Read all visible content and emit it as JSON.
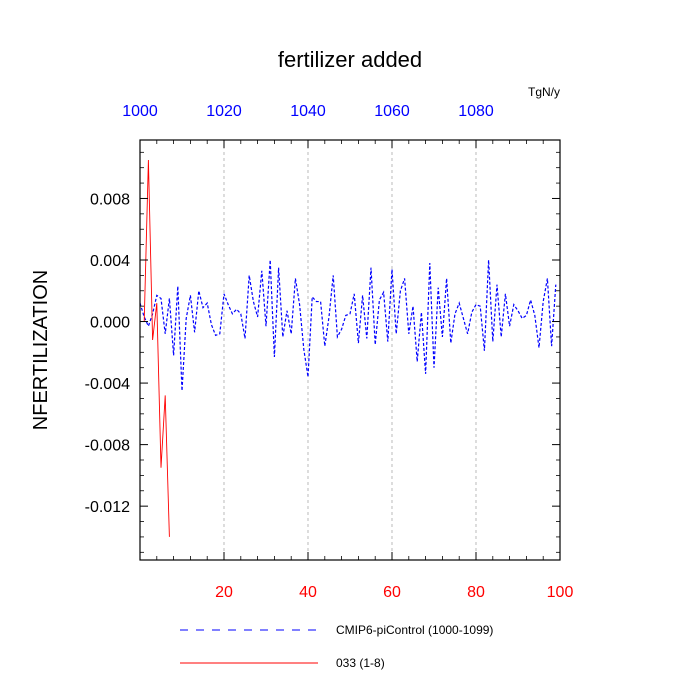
{
  "chart_data": {
    "type": "line",
    "title": "fertilizer added",
    "ylabel": "NFERTILIZATION",
    "units": "TgN/y",
    "ylim": [
      -0.0155,
      0.0118
    ],
    "yticks": [
      "0.008",
      "0.004",
      "0.000",
      "-0.004",
      "-0.008",
      "-0.012"
    ],
    "ytick_values": [
      0.008,
      0.004,
      0.0,
      -0.004,
      -0.008,
      -0.012
    ],
    "x_bottom": {
      "range": [
        0,
        100
      ],
      "ticks": [
        20,
        40,
        60,
        80,
        100
      ],
      "labels": [
        "20",
        "40",
        "60",
        "80",
        "100"
      ],
      "color": "#ff0000"
    },
    "x_top": {
      "range": [
        1000,
        1100
      ],
      "ticks": [
        1000,
        1020,
        1040,
        1060,
        1080
      ],
      "labels": [
        "1000",
        "1020",
        "1040",
        "1060",
        "1080"
      ],
      "color": "#0000ff"
    },
    "grid": "vertical dashed at top-axis ticks",
    "legend_position": "bottom",
    "series": [
      {
        "name": "CMIP6-piControl (1000-1099)",
        "color": "#0000ff",
        "style": "dashed",
        "axis": "top",
        "x": [
          1000,
          1001,
          1002,
          1003,
          1004,
          1005,
          1006,
          1007,
          1008,
          1009,
          1010,
          1011,
          1012,
          1013,
          1014,
          1015,
          1016,
          1017,
          1018,
          1019,
          1020,
          1021,
          1022,
          1023,
          1024,
          1025,
          1026,
          1027,
          1028,
          1029,
          1030,
          1031,
          1032,
          1033,
          1034,
          1035,
          1036,
          1037,
          1038,
          1039,
          1040,
          1041,
          1042,
          1043,
          1044,
          1045,
          1046,
          1047,
          1048,
          1049,
          1050,
          1051,
          1052,
          1053,
          1054,
          1055,
          1056,
          1057,
          1058,
          1059,
          1060,
          1061,
          1062,
          1063,
          1064,
          1065,
          1066,
          1067,
          1068,
          1069,
          1070,
          1071,
          1072,
          1073,
          1074,
          1075,
          1076,
          1077,
          1078,
          1079,
          1080,
          1081,
          1082,
          1083,
          1084,
          1085,
          1086,
          1087,
          1088,
          1089,
          1090,
          1091,
          1092,
          1093,
          1094,
          1095,
          1096,
          1097,
          1098,
          1099
        ],
        "values": [
          0.0012,
          0.0003,
          -0.0003,
          0.0005,
          0.0017,
          0.0015,
          -0.0008,
          0.0015,
          -0.0022,
          0.0023,
          -0.0045,
          0.0002,
          0.0017,
          -0.0007,
          0.002,
          0.0009,
          0.0012,
          -0.0002,
          -0.0009,
          -0.0008,
          0.0018,
          0.0011,
          0.0005,
          0.0008,
          0.0005,
          -0.0011,
          0.003,
          0.0013,
          0.0003,
          0.0033,
          -0.0003,
          0.004,
          -0.0023,
          0.0035,
          -0.001,
          0.0007,
          -0.0008,
          0.0028,
          0.0011,
          -0.0018,
          -0.0036,
          0.0016,
          0.0013,
          0.0013,
          -0.0016,
          0.0003,
          0.003,
          -0.001,
          -0.0005,
          0.0004,
          0.0005,
          0.0018,
          -0.0014,
          0.0017,
          -0.0011,
          0.0035,
          -0.0015,
          0.0014,
          0.0019,
          -0.0013,
          0.0034,
          -0.0008,
          0.002,
          0.0028,
          -0.0008,
          0.001,
          -0.0026,
          0.0006,
          -0.0034,
          0.0038,
          -0.003,
          0.0022,
          -0.001,
          0.0028,
          -0.0014,
          0.0005,
          0.0012,
          0.0002,
          -0.0008,
          0.0006,
          0.0011,
          0.001,
          -0.0019,
          0.004,
          -0.0013,
          0.0024,
          -0.001,
          0.0018,
          -0.0003,
          0.0011,
          0.0007,
          0.0002,
          0.0004,
          0.0014,
          0.0004,
          -0.0017,
          0.0013,
          0.0028,
          -0.0016,
          0.0024
        ]
      },
      {
        "name": "033 (1-8)",
        "color": "#ff0000",
        "style": "solid",
        "axis": "bottom",
        "x": [
          1,
          2,
          3,
          4,
          5,
          6,
          7,
          8
        ],
        "values": [
          0.0,
          0.0105,
          -0.0012,
          0.0012,
          -0.0095,
          -0.0048,
          -0.014,
          null
        ]
      }
    ]
  }
}
